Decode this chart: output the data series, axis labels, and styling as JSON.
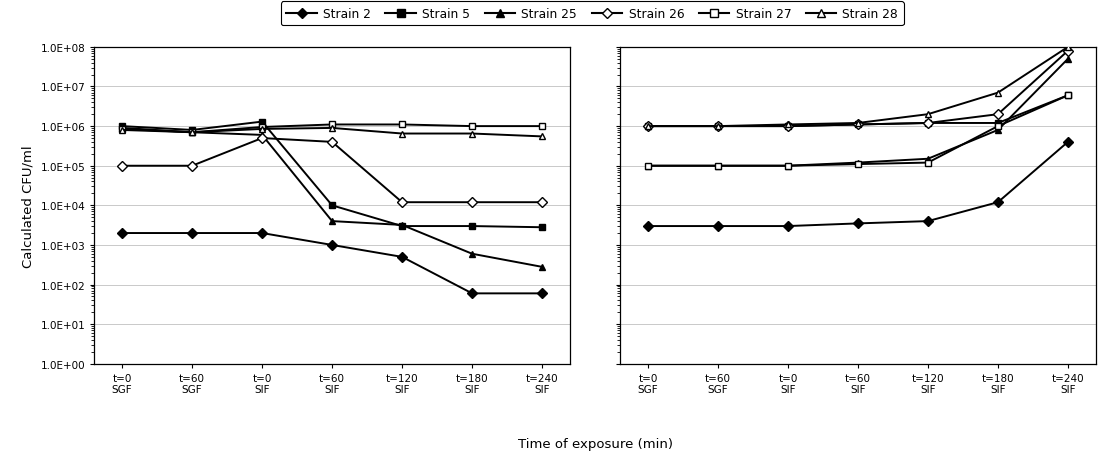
{
  "xlabel": "Time of exposure (min)",
  "ylabel": "Calculated CFU/ml",
  "xtick_labels": [
    "t=0\nSGF",
    "t=60\nSGF",
    "t=0\nSIF",
    "t=60\nSIF",
    "t=120\nSIF",
    "t=180\nSIF",
    "t=240\nSIF"
  ],
  "legend_labels": [
    "Strain 2",
    "Strain 5",
    "Strain 25",
    "Strain 26",
    "Strain 27",
    "Strain 28"
  ],
  "markers": [
    "D",
    "s",
    "^",
    "D",
    "s",
    "^"
  ],
  "fillstyles": [
    "full",
    "full",
    "full",
    "none",
    "none",
    "none"
  ],
  "left_data": [
    [
      2000,
      2000,
      2000,
      1000,
      500,
      60,
      60
    ],
    [
      1000000,
      800000,
      1300000,
      10000,
      3000,
      3000,
      2800
    ],
    [
      900000,
      700000,
      600000,
      4000,
      3200,
      600,
      280
    ],
    [
      100000,
      100000,
      500000,
      400000,
      12000,
      12000,
      12000
    ],
    [
      850000,
      700000,
      950000,
      1100000,
      1100000,
      1000000,
      1000000
    ],
    [
      800000,
      700000,
      850000,
      900000,
      650000,
      650000,
      550000
    ]
  ],
  "right_data": [
    [
      3000,
      3000,
      3000,
      3500,
      4000,
      12000,
      400000
    ],
    [
      1000000,
      1000000,
      1000000,
      1100000,
      1200000,
      1200000,
      6000000
    ],
    [
      100000,
      100000,
      100000,
      120000,
      150000,
      800000,
      50000000
    ],
    [
      1000000,
      1000000,
      1000000,
      1100000,
      1200000,
      2000000,
      80000000
    ],
    [
      100000,
      100000,
      100000,
      110000,
      120000,
      1000000,
      6000000
    ],
    [
      1000000,
      1000000,
      1100000,
      1200000,
      2000000,
      7000000,
      100000000
    ]
  ]
}
